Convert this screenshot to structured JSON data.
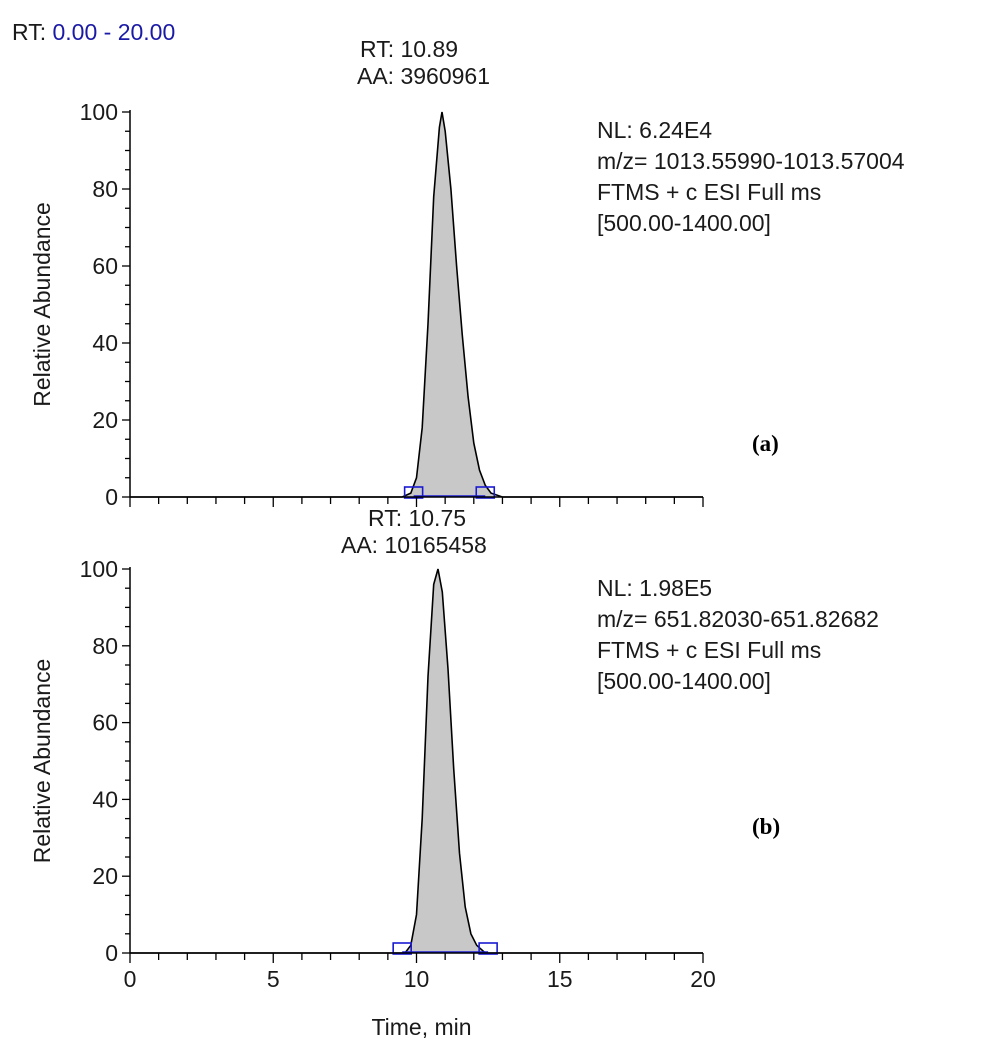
{
  "header": {
    "rt_prefix": "RT:",
    "rt_range": "0.00 - 20.00",
    "rt_range_color": "#1a1aa6"
  },
  "colors": {
    "peak_fill": "#c8c8c8",
    "peak_stroke": "#000000",
    "baseline_marker": "#1a1ad0"
  },
  "chart_data": [
    {
      "type": "area",
      "panel_tag": "(a)",
      "ylabel": "Relative Abundance",
      "xlim": [
        0,
        20
      ],
      "ylim": [
        0,
        100
      ],
      "yticks": [
        "0",
        "20",
        "40",
        "60",
        "80",
        "100"
      ],
      "show_x_tick_labels": false,
      "peak_label": {
        "rt": "RT: 10.89",
        "aa": "AA: 3960961"
      },
      "info": [
        "NL: 6.24E4",
        "m/z= 1013.55990-1013.57004",
        "FTMS + c ESI Full ms",
        "[500.00-1400.00]"
      ],
      "baseline_markers_x": [
        9.9,
        12.4
      ],
      "series": [
        {
          "x": [
            0,
            9.5,
            9.8,
            10.0,
            10.2,
            10.4,
            10.6,
            10.8,
            10.89,
            11.0,
            11.2,
            11.4,
            11.6,
            11.8,
            12.0,
            12.2,
            12.4,
            12.6,
            13.0,
            20
          ],
          "y": [
            0,
            0,
            1,
            5,
            18,
            45,
            78,
            96,
            100,
            95,
            80,
            60,
            42,
            26,
            14,
            7,
            3,
            1,
            0,
            0
          ]
        }
      ]
    },
    {
      "type": "area",
      "panel_tag": "(b)",
      "ylabel": "Relative Abundance",
      "xlabel": "Time, min",
      "xlim": [
        0,
        20
      ],
      "ylim": [
        0,
        100
      ],
      "yticks": [
        "0",
        "20",
        "40",
        "60",
        "80",
        "100"
      ],
      "xticks": [
        "0",
        "5",
        "10",
        "15",
        "20"
      ],
      "show_x_tick_labels": true,
      "peak_label": {
        "rt": "RT: 10.75",
        "aa": "AA: 10165458"
      },
      "info": [
        "NL: 1.98E5",
        "m/z= 651.82030-651.82682",
        "FTMS + c ESI Full ms",
        "[500.00-1400.00]"
      ],
      "baseline_markers_x": [
        9.5,
        12.5
      ],
      "series": [
        {
          "x": [
            0,
            9.6,
            9.8,
            10.0,
            10.2,
            10.4,
            10.6,
            10.75,
            10.9,
            11.1,
            11.3,
            11.5,
            11.7,
            11.9,
            12.1,
            12.4,
            20
          ],
          "y": [
            0,
            0,
            2,
            10,
            35,
            72,
            96,
            100,
            94,
            74,
            48,
            26,
            12,
            5,
            2,
            0,
            0
          ]
        }
      ]
    }
  ]
}
